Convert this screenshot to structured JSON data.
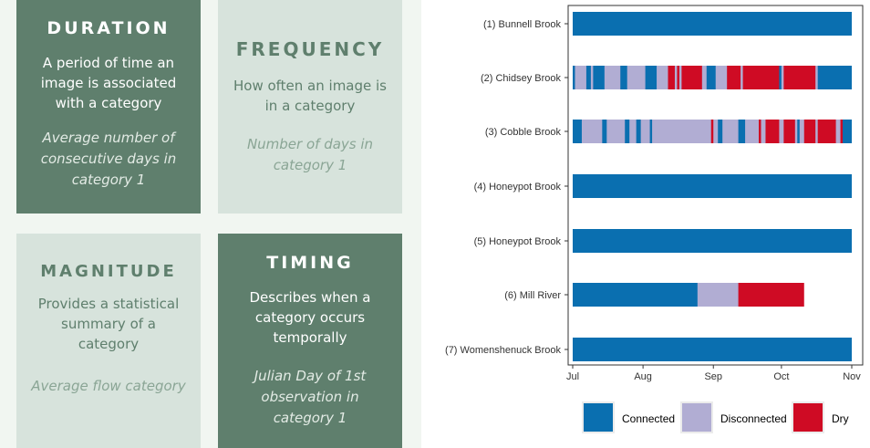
{
  "cards": {
    "duration": {
      "title": "DURATION",
      "description": "A period of time an image is associated with a category",
      "metric": "Average number of consecutive days in category 1"
    },
    "frequency": {
      "title": "FREQUENCY",
      "description": "How often an image is in a category",
      "metric": "Number of days in category 1"
    },
    "magnitude": {
      "title": "MAGNITUDE",
      "description": "Provides a statistical summary of a category",
      "metric": "Average flow category"
    },
    "timing": {
      "title": "TIMING",
      "description": "Describes when a category occurs temporally",
      "metric": "Julian Day of 1st observation in category 1"
    }
  },
  "colors": {
    "card_dark": "#5f7f6d",
    "card_light": "#d7e3dc",
    "Connected": "#0a6fb0",
    "Disconnected": "#b1add3",
    "Dry": "#cf0b24"
  },
  "chart_data": {
    "type": "bar",
    "orientation": "horizontal-timeline",
    "x_ticks": [
      "Jul",
      "Aug",
      "Sep",
      "Oct",
      "Nov"
    ],
    "x_range": [
      "Jul 1",
      "Nov 1"
    ],
    "categories": [
      "(1) Bunnell Brook",
      "(2) Chidsey Brook",
      "(3) Cobble Brook",
      "(4) Honeypot Brook",
      "(5) Honeypot Brook",
      "(6) Mill River",
      "(7) Womenshenuck Brook"
    ],
    "legend": [
      "Connected",
      "Disconnected",
      "Dry"
    ],
    "legend_position": "bottom",
    "grid": false,
    "series": [
      {
        "name": "(1) Bunnell Brook",
        "segments": [
          {
            "start": "Jul 1",
            "end": "Oct 31",
            "state": "Connected"
          }
        ]
      },
      {
        "name": "(2) Chidsey Brook",
        "segments": [
          {
            "start": "Jul 1",
            "end": "Jul 2",
            "state": "Connected"
          },
          {
            "start": "Jul 2",
            "end": "Jul 7",
            "state": "Disconnected"
          },
          {
            "start": "Jul 7",
            "end": "Jul 9",
            "state": "Connected"
          },
          {
            "start": "Jul 9",
            "end": "Jul 10",
            "state": "Disconnected"
          },
          {
            "start": "Jul 10",
            "end": "Jul 15",
            "state": "Connected"
          },
          {
            "start": "Jul 15",
            "end": "Jul 22",
            "state": "Disconnected"
          },
          {
            "start": "Jul 22",
            "end": "Jul 25",
            "state": "Connected"
          },
          {
            "start": "Jul 25",
            "end": "Aug 2",
            "state": "Disconnected"
          },
          {
            "start": "Aug 2",
            "end": "Aug 7",
            "state": "Connected"
          },
          {
            "start": "Aug 7",
            "end": "Aug 12",
            "state": "Disconnected"
          },
          {
            "start": "Aug 12",
            "end": "Aug 15",
            "state": "Dry"
          },
          {
            "start": "Aug 15",
            "end": "Aug 16",
            "state": "Disconnected"
          },
          {
            "start": "Aug 16",
            "end": "Aug 17",
            "state": "Dry"
          },
          {
            "start": "Aug 17",
            "end": "Aug 18",
            "state": "Disconnected"
          },
          {
            "start": "Aug 18",
            "end": "Aug 27",
            "state": "Dry"
          },
          {
            "start": "Aug 27",
            "end": "Aug 29",
            "state": "Disconnected"
          },
          {
            "start": "Aug 29",
            "end": "Sep 2",
            "state": "Connected"
          },
          {
            "start": "Sep 2",
            "end": "Sep 7",
            "state": "Disconnected"
          },
          {
            "start": "Sep 7",
            "end": "Sep 13",
            "state": "Dry"
          },
          {
            "start": "Sep 13",
            "end": "Sep 14",
            "state": "Disconnected"
          },
          {
            "start": "Sep 14",
            "end": "Sep 30",
            "state": "Dry"
          },
          {
            "start": "Sep 30",
            "end": "Oct 1",
            "state": "Connected"
          },
          {
            "start": "Oct 1",
            "end": "Oct 2",
            "state": "Disconnected"
          },
          {
            "start": "Oct 2",
            "end": "Oct 16",
            "state": "Dry"
          },
          {
            "start": "Oct 16",
            "end": "Oct 17",
            "state": "Disconnected"
          },
          {
            "start": "Oct 17",
            "end": "Oct 31",
            "state": "Connected"
          }
        ]
      },
      {
        "name": "(3) Cobble Brook",
        "segments": [
          {
            "start": "Jul 1",
            "end": "Jul 5",
            "state": "Connected"
          },
          {
            "start": "Jul 5",
            "end": "Jul 14",
            "state": "Disconnected"
          },
          {
            "start": "Jul 14",
            "end": "Jul 16",
            "state": "Connected"
          },
          {
            "start": "Jul 16",
            "end": "Jul 24",
            "state": "Disconnected"
          },
          {
            "start": "Jul 24",
            "end": "Jul 26",
            "state": "Connected"
          },
          {
            "start": "Jul 26",
            "end": "Jul 29",
            "state": "Disconnected"
          },
          {
            "start": "Jul 29",
            "end": "Jul 31",
            "state": "Connected"
          },
          {
            "start": "Jul 31",
            "end": "Aug 4",
            "state": "Disconnected"
          },
          {
            "start": "Aug 4",
            "end": "Aug 5",
            "state": "Connected"
          },
          {
            "start": "Aug 5",
            "end": "Aug 31",
            "state": "Disconnected"
          },
          {
            "start": "Aug 31",
            "end": "Sep 1",
            "state": "Dry"
          },
          {
            "start": "Sep 1",
            "end": "Sep 3",
            "state": "Disconnected"
          },
          {
            "start": "Sep 3",
            "end": "Sep 5",
            "state": "Connected"
          },
          {
            "start": "Sep 5",
            "end": "Sep 12",
            "state": "Disconnected"
          },
          {
            "start": "Sep 12",
            "end": "Sep 15",
            "state": "Connected"
          },
          {
            "start": "Sep 15",
            "end": "Sep 21",
            "state": "Disconnected"
          },
          {
            "start": "Sep 21",
            "end": "Sep 22",
            "state": "Dry"
          },
          {
            "start": "Sep 22",
            "end": "Sep 24",
            "state": "Disconnected"
          },
          {
            "start": "Sep 24",
            "end": "Sep 30",
            "state": "Dry"
          },
          {
            "start": "Sep 30",
            "end": "Oct 2",
            "state": "Disconnected"
          },
          {
            "start": "Oct 2",
            "end": "Oct 7",
            "state": "Dry"
          },
          {
            "start": "Oct 7",
            "end": "Oct 8",
            "state": "Disconnected"
          },
          {
            "start": "Oct 8",
            "end": "Oct 9",
            "state": "Connected"
          },
          {
            "start": "Oct 9",
            "end": "Oct 11",
            "state": "Disconnected"
          },
          {
            "start": "Oct 11",
            "end": "Oct 16",
            "state": "Dry"
          },
          {
            "start": "Oct 16",
            "end": "Oct 17",
            "state": "Disconnected"
          },
          {
            "start": "Oct 17",
            "end": "Oct 25",
            "state": "Dry"
          },
          {
            "start": "Oct 25",
            "end": "Oct 27",
            "state": "Disconnected"
          },
          {
            "start": "Oct 27",
            "end": "Oct 28",
            "state": "Dry"
          },
          {
            "start": "Oct 28",
            "end": "Oct 31",
            "state": "Connected"
          }
        ]
      },
      {
        "name": "(4) Honeypot Brook",
        "segments": [
          {
            "start": "Jul 1",
            "end": "Oct 31",
            "state": "Connected"
          }
        ]
      },
      {
        "name": "(5) Honeypot Brook",
        "segments": [
          {
            "start": "Jul 1",
            "end": "Oct 31",
            "state": "Connected"
          }
        ]
      },
      {
        "name": "(6) Mill River",
        "segments": [
          {
            "start": "Jul 1",
            "end": "Aug 25",
            "state": "Connected"
          },
          {
            "start": "Aug 25",
            "end": "Sep 12",
            "state": "Disconnected"
          },
          {
            "start": "Sep 12",
            "end": "Oct 10",
            "state": "Dry"
          }
        ]
      },
      {
        "name": "(7) Womenshenuck Brook",
        "segments": [
          {
            "start": "Jul 1",
            "end": "Oct 31",
            "state": "Connected"
          }
        ]
      }
    ]
  }
}
